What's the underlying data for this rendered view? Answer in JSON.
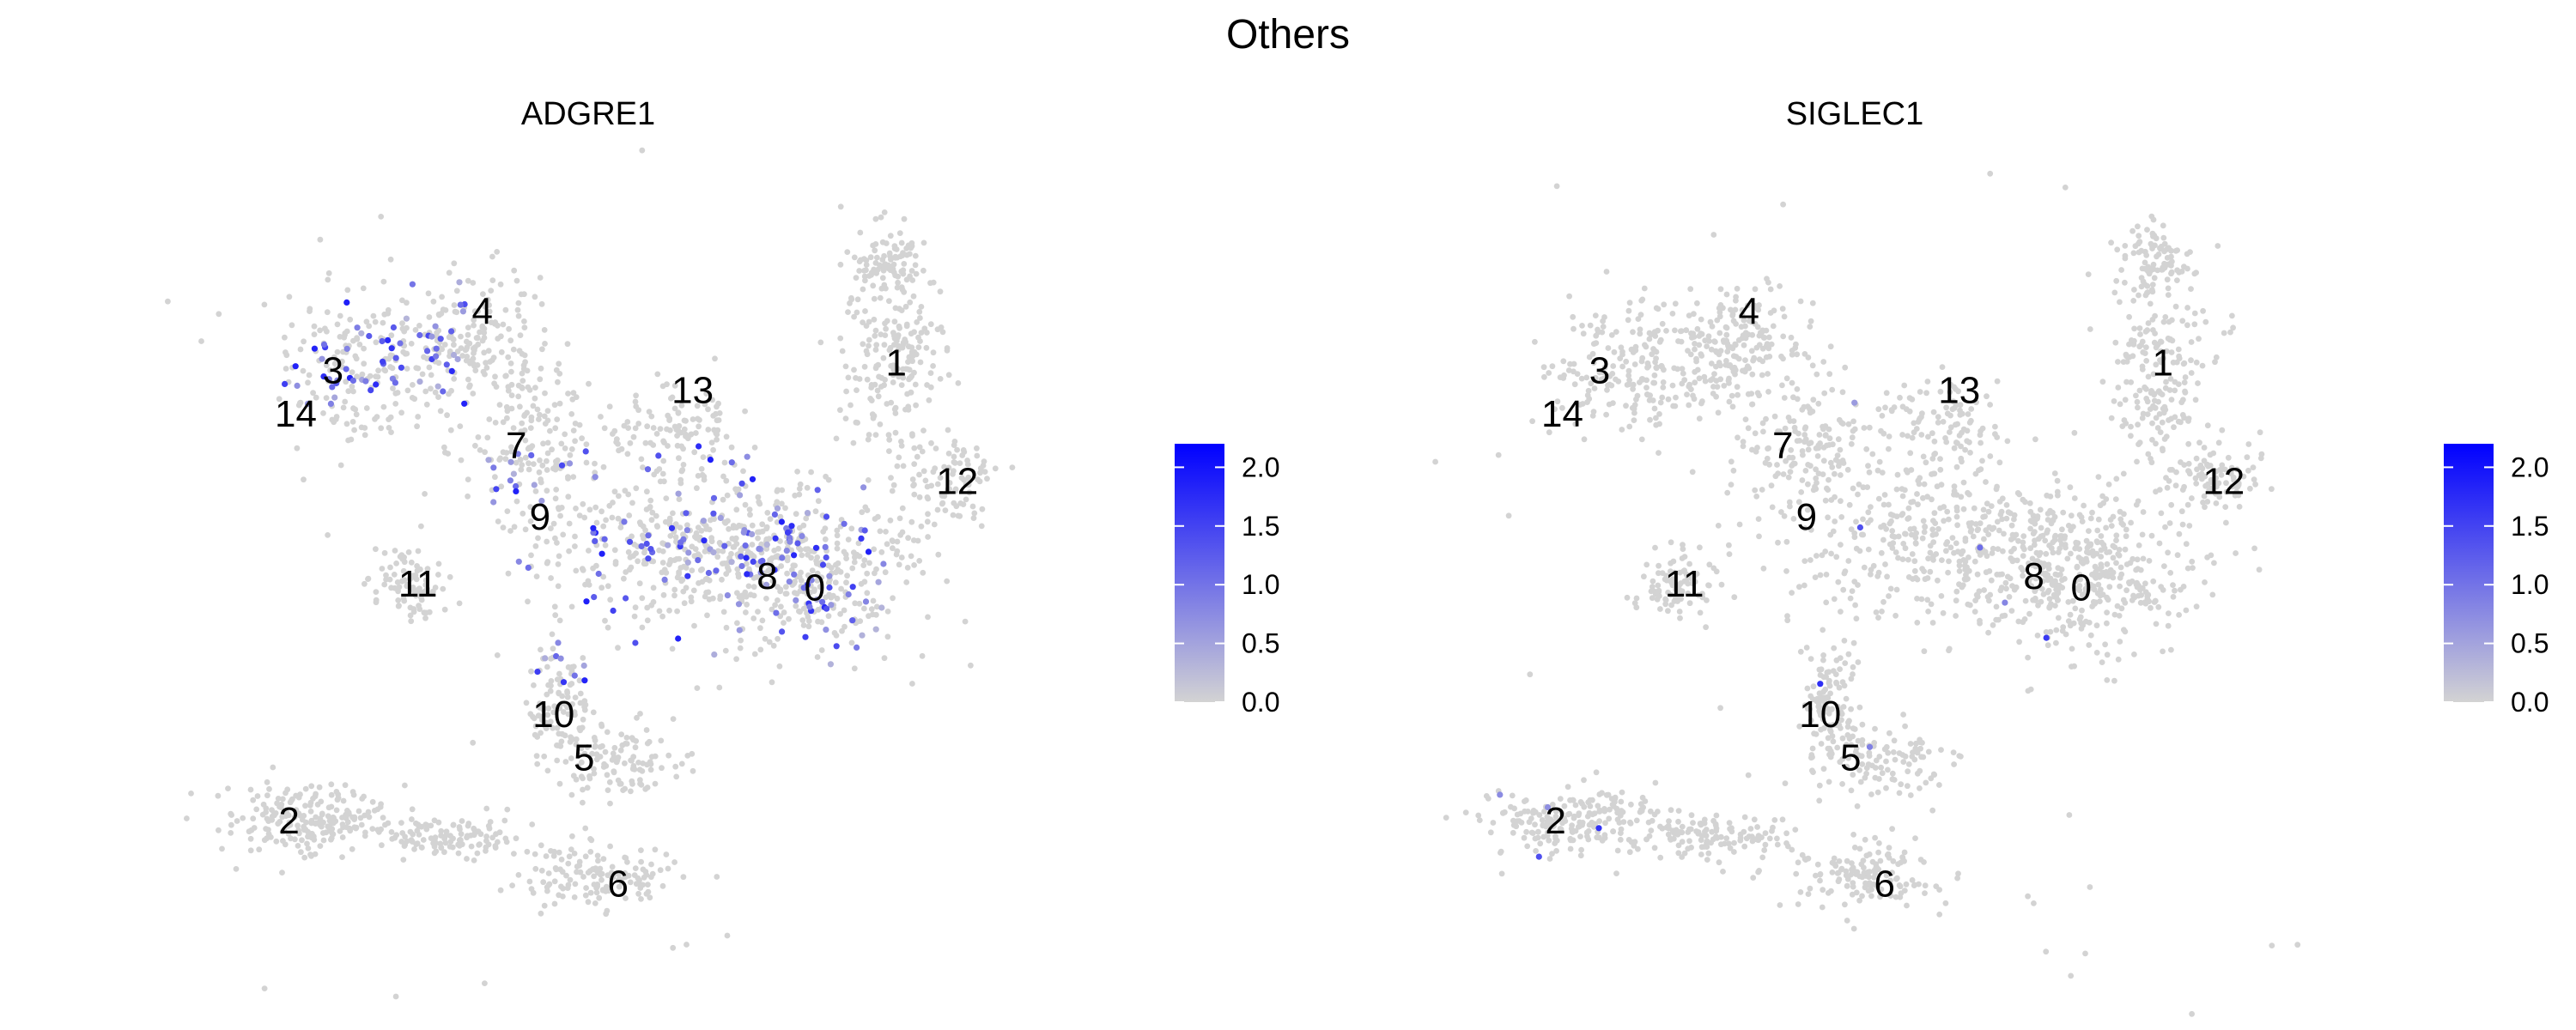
{
  "figure": {
    "title": "Others"
  },
  "colors": {
    "low": "#d3d3d3",
    "high": "#0000ff",
    "background": "#ffffff"
  },
  "chart_data": [
    {
      "type": "scatter",
      "title": "ADGRE1",
      "xlabel": "",
      "ylabel": "",
      "grid": false,
      "legend": "right",
      "color_scale": {
        "min": 0.0,
        "max": 2.2,
        "ticks": [
          "0.0",
          "0.5",
          "1.0",
          "1.5",
          "2.0"
        ]
      },
      "cluster_labels": [
        {
          "label": "0",
          "x": 0.63,
          "y": -0.01
        },
        {
          "label": "1",
          "x": 0.87,
          "y": 0.56
        },
        {
          "label": "2",
          "x": -0.92,
          "y": -0.6
        },
        {
          "label": "3",
          "x": -0.79,
          "y": 0.54
        },
        {
          "label": "4",
          "x": -0.35,
          "y": 0.69
        },
        {
          "label": "5",
          "x": -0.05,
          "y": -0.44
        },
        {
          "label": "6",
          "x": 0.05,
          "y": -0.76
        },
        {
          "label": "7",
          "x": -0.25,
          "y": 0.35
        },
        {
          "label": "8",
          "x": 0.49,
          "y": 0.02
        },
        {
          "label": "9",
          "x": -0.18,
          "y": 0.17
        },
        {
          "label": "10",
          "x": -0.14,
          "y": -0.33
        },
        {
          "label": "11",
          "x": -0.54,
          "y": 0.0
        },
        {
          "label": "12",
          "x": 1.05,
          "y": 0.26
        },
        {
          "label": "13",
          "x": 0.27,
          "y": 0.49
        },
        {
          "label": "14",
          "x": -0.9,
          "y": 0.43
        }
      ]
    },
    {
      "type": "scatter",
      "title": "SIGLEC1",
      "xlabel": "",
      "ylabel": "",
      "grid": false,
      "legend": "right",
      "color_scale": {
        "min": 0.0,
        "max": 2.2,
        "ticks": [
          "0.0",
          "0.5",
          "1.0",
          "1.5",
          "2.0"
        ]
      },
      "cluster_labels": [
        {
          "label": "0",
          "x": 0.63,
          "y": -0.01
        },
        {
          "label": "1",
          "x": 0.87,
          "y": 0.56
        },
        {
          "label": "2",
          "x": -0.92,
          "y": -0.6
        },
        {
          "label": "3",
          "x": -0.79,
          "y": 0.54
        },
        {
          "label": "4",
          "x": -0.35,
          "y": 0.69
        },
        {
          "label": "5",
          "x": -0.05,
          "y": -0.44
        },
        {
          "label": "6",
          "x": 0.05,
          "y": -0.76
        },
        {
          "label": "7",
          "x": -0.25,
          "y": 0.35
        },
        {
          "label": "8",
          "x": 0.49,
          "y": 0.02
        },
        {
          "label": "9",
          "x": -0.18,
          "y": 0.17
        },
        {
          "label": "10",
          "x": -0.14,
          "y": -0.33
        },
        {
          "label": "11",
          "x": -0.54,
          "y": 0.0
        },
        {
          "label": "12",
          "x": 1.05,
          "y": 0.26
        },
        {
          "label": "13",
          "x": 0.27,
          "y": 0.49
        },
        {
          "label": "14",
          "x": -0.9,
          "y": 0.43
        }
      ]
    }
  ]
}
